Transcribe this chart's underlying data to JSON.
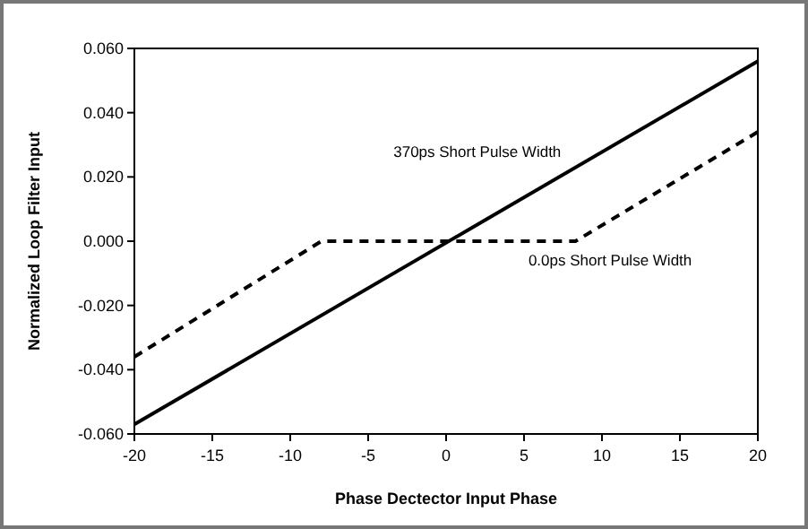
{
  "chart_data": {
    "type": "line",
    "xlabel": "Phase Dectector Input Phase",
    "ylabel": "Normalized Loop Filter Input",
    "xlim": [
      -20,
      20
    ],
    "xticks": [
      -20,
      -15,
      -10,
      -5,
      0,
      5,
      10,
      15,
      20
    ],
    "ylim": [
      -0.06,
      0.06
    ],
    "yticks": [
      {
        "value": -0.06,
        "label": "-0.060"
      },
      {
        "value": -0.04,
        "label": "-0.040"
      },
      {
        "value": -0.02,
        "label": "-0.020"
      },
      {
        "value": 0,
        "label": "0.000"
      },
      {
        "value": 0.02,
        "label": "0.020"
      },
      {
        "value": 0.04,
        "label": "0.040"
      },
      {
        "value": 0.06,
        "label": "0.060"
      }
    ],
    "grid": false,
    "legend": false,
    "marker": "none",
    "series": [
      {
        "name": "370ps Short Pulse Width",
        "color": "#000000",
        "line_style": "solid",
        "x": [
          -20,
          20
        ],
        "values": [
          -0.057,
          0.056
        ]
      },
      {
        "name": "0.0ps Short Pulse Width",
        "color": "#000000",
        "line_style": "dashed",
        "x": [
          -20,
          -8,
          8.3,
          20
        ],
        "values": [
          -0.036,
          0,
          0,
          0.034
        ]
      }
    ]
  }
}
